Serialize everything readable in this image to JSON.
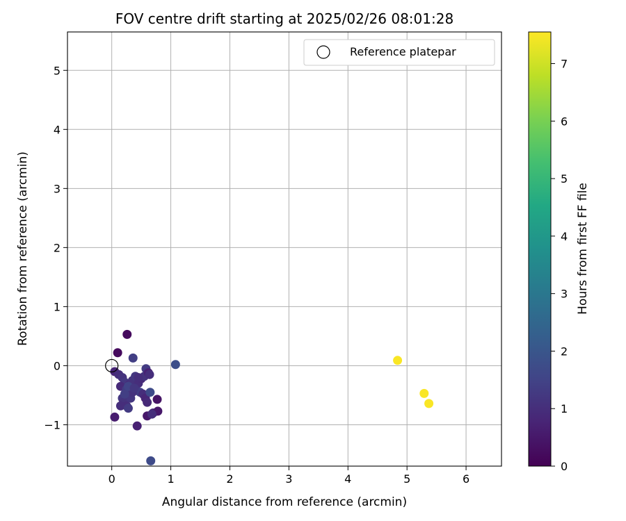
{
  "chart_data": {
    "type": "scatter",
    "title": "FOV centre drift starting at 2025/02/26 08:01:28",
    "xlabel": "Angular distance from reference (arcmin)",
    "ylabel": "Rotation from reference (arcmin)",
    "xlim": [
      -0.75,
      6.6
    ],
    "ylim": [
      -1.7,
      5.65
    ],
    "xticks": [
      0,
      1,
      2,
      3,
      4,
      5,
      6
    ],
    "yticks": [
      -1,
      0,
      1,
      2,
      3,
      4,
      5
    ],
    "grid": true,
    "legend": {
      "position": "top-right",
      "entries": [
        {
          "label": "Reference platepar",
          "marker": "open-circle"
        }
      ]
    },
    "reference_point": {
      "x": 0,
      "y": 0
    },
    "colorbar": {
      "label": "Hours from first FF file",
      "colormap": "viridis",
      "range": [
        0,
        7.55
      ],
      "ticks": [
        0,
        1,
        2,
        3,
        4,
        5,
        6,
        7
      ]
    },
    "points": [
      {
        "x": 0.26,
        "y": 0.53,
        "c": 0.2
      },
      {
        "x": 0.1,
        "y": 0.22,
        "c": 0.2
      },
      {
        "x": 0.36,
        "y": 0.13,
        "c": 1.4
      },
      {
        "x": 0.05,
        "y": -0.1,
        "c": 0.8
      },
      {
        "x": 0.12,
        "y": -0.15,
        "c": 1.0
      },
      {
        "x": 0.18,
        "y": -0.2,
        "c": 1.1
      },
      {
        "x": 0.22,
        "y": -0.28,
        "c": 1.2
      },
      {
        "x": 0.15,
        "y": -0.35,
        "c": 0.9
      },
      {
        "x": 0.25,
        "y": -0.4,
        "c": 1.3
      },
      {
        "x": 0.3,
        "y": -0.32,
        "c": 1.0
      },
      {
        "x": 0.35,
        "y": -0.25,
        "c": 1.1
      },
      {
        "x": 0.4,
        "y": -0.18,
        "c": 1.2
      },
      {
        "x": 0.45,
        "y": -0.3,
        "c": 1.0
      },
      {
        "x": 0.5,
        "y": -0.22,
        "c": 0.9
      },
      {
        "x": 0.55,
        "y": -0.18,
        "c": 1.1
      },
      {
        "x": 0.58,
        "y": -0.05,
        "c": 1.3
      },
      {
        "x": 0.62,
        "y": -0.12,
        "c": 0.7
      },
      {
        "x": 0.64,
        "y": -0.15,
        "c": 1.0
      },
      {
        "x": 0.42,
        "y": -0.42,
        "c": 1.2
      },
      {
        "x": 0.48,
        "y": -0.45,
        "c": 1.4
      },
      {
        "x": 0.53,
        "y": -0.48,
        "c": 1.0
      },
      {
        "x": 0.57,
        "y": -0.55,
        "c": 0.8
      },
      {
        "x": 0.6,
        "y": -0.62,
        "c": 0.9
      },
      {
        "x": 0.65,
        "y": -0.45,
        "c": 1.7
      },
      {
        "x": 0.18,
        "y": -0.55,
        "c": 1.2
      },
      {
        "x": 0.2,
        "y": -0.62,
        "c": 1.1
      },
      {
        "x": 0.25,
        "y": -0.68,
        "c": 1.0
      },
      {
        "x": 0.15,
        "y": -0.68,
        "c": 1.0
      },
      {
        "x": 0.28,
        "y": -0.72,
        "c": 1.3
      },
      {
        "x": 0.32,
        "y": -0.55,
        "c": 1.2
      },
      {
        "x": 0.35,
        "y": -0.45,
        "c": 1.1
      },
      {
        "x": 0.22,
        "y": -0.48,
        "c": 1.4
      },
      {
        "x": 0.28,
        "y": -0.35,
        "c": 1.5
      },
      {
        "x": 0.38,
        "y": -0.38,
        "c": 1.2
      },
      {
        "x": 0.45,
        "y": -0.2,
        "c": 1.0
      },
      {
        "x": 0.05,
        "y": -0.87,
        "c": 0.6
      },
      {
        "x": 0.43,
        "y": -1.02,
        "c": 0.7
      },
      {
        "x": 0.6,
        "y": -0.85,
        "c": 0.5
      },
      {
        "x": 0.7,
        "y": -0.8,
        "c": 0.8
      },
      {
        "x": 0.77,
        "y": -0.57,
        "c": 0.4
      },
      {
        "x": 0.78,
        "y": -0.77,
        "c": 0.5
      },
      {
        "x": 0.68,
        "y": -0.82,
        "c": 1.0
      },
      {
        "x": 1.08,
        "y": 0.02,
        "c": 1.8
      },
      {
        "x": 0.66,
        "y": -1.61,
        "c": 1.7
      },
      {
        "x": 4.84,
        "y": 0.09,
        "c": 7.5
      },
      {
        "x": 5.29,
        "y": -0.47,
        "c": 7.5
      },
      {
        "x": 5.37,
        "y": -0.64,
        "c": 7.5
      }
    ]
  }
}
